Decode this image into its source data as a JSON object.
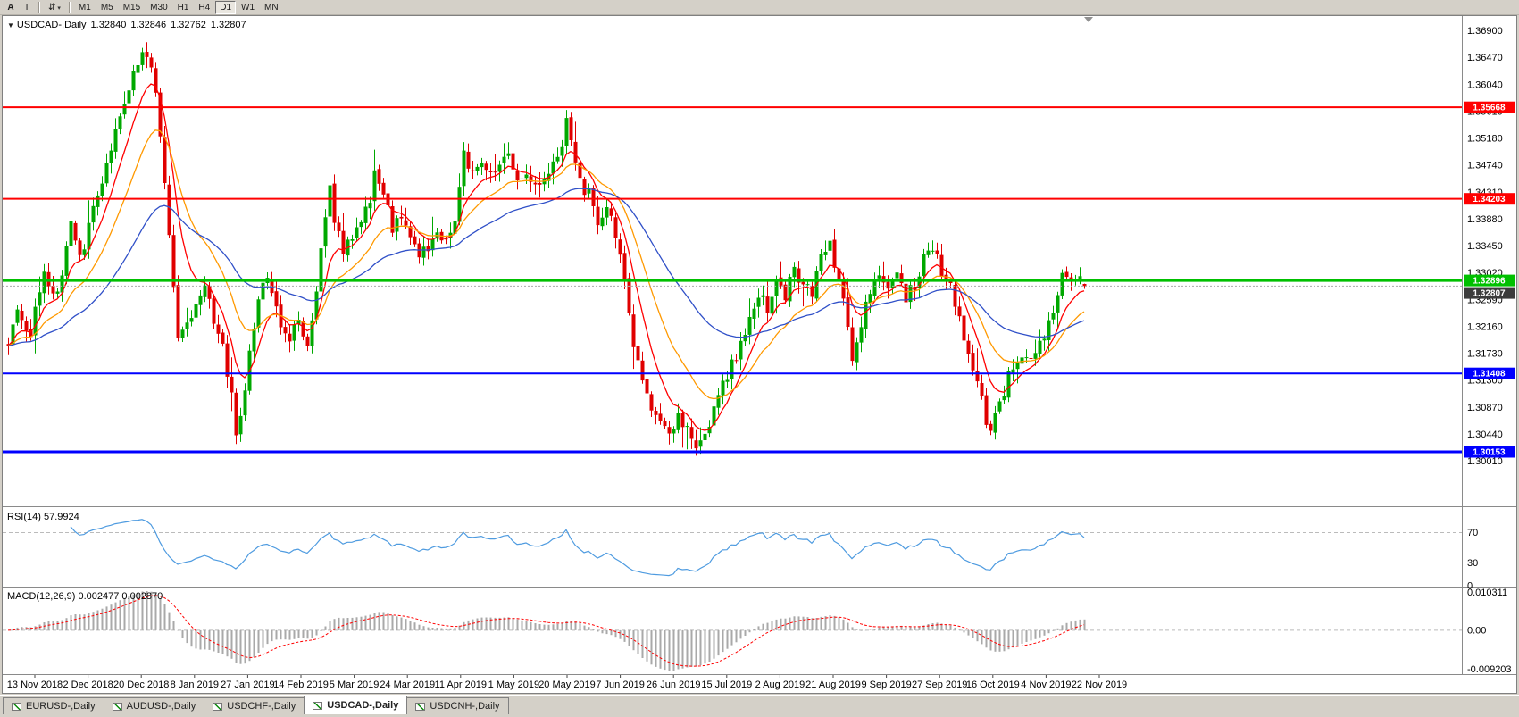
{
  "icons": {
    "arrows": "⇵",
    "caret": "▾",
    "dropdown": "▼"
  },
  "toolbar": {
    "font_buttons": [
      {
        "label": "A"
      },
      {
        "label": "T"
      }
    ],
    "timeframes": [
      {
        "label": "M1"
      },
      {
        "label": "M5"
      },
      {
        "label": "M15"
      },
      {
        "label": "M30"
      },
      {
        "label": "H1"
      },
      {
        "label": "H4"
      },
      {
        "label": "D1",
        "active": true
      },
      {
        "label": "W1"
      },
      {
        "label": "MN"
      }
    ]
  },
  "chart": {
    "symbol_label": "USDCAD-,Daily",
    "ohlc": {
      "open": "1.32840",
      "high": "1.32846",
      "low": "1.32762",
      "close": "1.32807"
    },
    "price_ticks": [
      "1.36900",
      "1.36470",
      "1.36040",
      "1.35610",
      "1.35180",
      "1.34740",
      "1.34310",
      "1.33880",
      "1.33450",
      "1.33020",
      "1.32590",
      "1.32160",
      "1.31730",
      "1.31300",
      "1.30870",
      "1.30440",
      "1.30010"
    ],
    "hlines": [
      {
        "price": 1.35668,
        "label": "1.35668",
        "color": "#FF0000",
        "width": 2
      },
      {
        "price": 1.34203,
        "label": "1.34203",
        "color": "#FF0000",
        "width": 2
      },
      {
        "price": 1.32896,
        "label": "1.32896",
        "color": "#00C000",
        "width": 3
      },
      {
        "price": 1.31408,
        "label": "1.31408",
        "color": "#0000FF",
        "width": 2
      },
      {
        "price": 1.30153,
        "label": "1.30153",
        "color": "#0000FF",
        "width": 3
      }
    ],
    "bid": {
      "price": 1.32807,
      "label": "1.32807",
      "box_color": "#3C3C3C"
    },
    "dates": [
      "13 Nov 2018",
      "2 Dec 2018",
      "20 Dec 2018",
      "8 Jan 2019",
      "27 Jan 2019",
      "14 Feb 2019",
      "5 Mar 2019",
      "24 Mar 2019",
      "11 Apr 2019",
      "1 May 2019",
      "20 May 2019",
      "7 Jun 2019",
      "26 Jun 2019",
      "15 Jul 2019",
      "2 Aug 2019",
      "21 Aug 2019",
      "9 Sep 2019",
      "27 Sep 2019",
      "16 Oct 2019",
      "4 Nov 2019",
      "22 Nov 2019"
    ]
  },
  "rsi": {
    "title": "RSI(14) 57.9924",
    "period": 14,
    "value": 57.9924,
    "levels": [
      {
        "label": "70",
        "value": 70,
        "line": true
      },
      {
        "label": "30",
        "value": 30,
        "line": true
      },
      {
        "label": "0",
        "value": 0,
        "line": false
      }
    ]
  },
  "macd": {
    "title": "MACD(12,26,9) 0.002477 0.002870",
    "fast": 12,
    "slow": 26,
    "signal_period": 9,
    "values": [
      0.002477,
      0.00287
    ],
    "levels": [
      {
        "label": "0.010311",
        "pos": "top"
      },
      {
        "label": "0.00",
        "pos": "zero"
      },
      {
        "label": "-0.009203",
        "pos": "bottom"
      }
    ]
  },
  "tabs": [
    {
      "label": "EURUSD-,Daily"
    },
    {
      "label": "AUDUSD-,Daily"
    },
    {
      "label": "USDCHF-,Daily"
    },
    {
      "label": "USDCAD-,Daily",
      "active": true
    },
    {
      "label": "USDCNH-,Daily"
    }
  ],
  "colors": {
    "up": "#00A800",
    "down": "#E00000",
    "rsi_line": "#4E9BE0",
    "macd_hist": "#A9A9A9",
    "macd_signal": "#FF0000",
    "chrome": "#D4D0C8",
    "panel_bg": "#FFFFFF"
  },
  "chart_data": {
    "type": "candlestick",
    "symbol": "USDCAD",
    "timeframe": "Daily",
    "candles_visible": 242,
    "axis_top_price": 1.369,
    "axis_bottom_price": 1.3001,
    "visible_price_range": [
      1.293,
      1.37
    ],
    "last_candle": {
      "open": 1.3284,
      "high": 1.32846,
      "low": 1.32762,
      "close": 1.32807
    },
    "moving_averages": [
      {
        "color": "#FF0000",
        "period": 8
      },
      {
        "color": "#FF9900",
        "period": 18
      },
      {
        "color": "#3050C8",
        "period": 45
      }
    ],
    "trend_anchors": [
      [
        0,
        1.3185
      ],
      [
        2,
        1.324
      ],
      [
        5,
        1.3205
      ],
      [
        8,
        1.33
      ],
      [
        11,
        1.3265
      ],
      [
        14,
        1.338
      ],
      [
        16,
        1.332
      ],
      [
        19,
        1.34
      ],
      [
        22,
        1.348
      ],
      [
        25,
        1.356
      ],
      [
        28,
        1.362
      ],
      [
        30,
        1.3655
      ],
      [
        32,
        1.364
      ],
      [
        34,
        1.352
      ],
      [
        36,
        1.336
      ],
      [
        38,
        1.32
      ],
      [
        40,
        1.3215
      ],
      [
        42,
        1.326
      ],
      [
        44,
        1.3285
      ],
      [
        46,
        1.3225
      ],
      [
        48,
        1.318
      ],
      [
        50,
        1.31
      ],
      [
        51,
        1.3045
      ],
      [
        53,
        1.312
      ],
      [
        55,
        1.322
      ],
      [
        57,
        1.3295
      ],
      [
        59,
        1.328
      ],
      [
        61,
        1.3225
      ],
      [
        63,
        1.3195
      ],
      [
        65,
        1.3235
      ],
      [
        67,
        1.3185
      ],
      [
        69,
        1.3265
      ],
      [
        70,
        1.3345
      ],
      [
        72,
        1.344
      ],
      [
        73,
        1.3385
      ],
      [
        75,
        1.3335
      ],
      [
        77,
        1.3365
      ],
      [
        79,
        1.3385
      ],
      [
        81,
        1.3415
      ],
      [
        82,
        1.3465
      ],
      [
        84,
        1.3425
      ],
      [
        86,
        1.3375
      ],
      [
        88,
        1.3385
      ],
      [
        90,
        1.3365
      ],
      [
        92,
        1.3335
      ],
      [
        94,
        1.3345
      ],
      [
        96,
        1.3365
      ],
      [
        98,
        1.3355
      ],
      [
        100,
        1.3375
      ],
      [
        102,
        1.3495
      ],
      [
        104,
        1.3455
      ],
      [
        106,
        1.3475
      ],
      [
        108,
        1.3465
      ],
      [
        110,
        1.3475
      ],
      [
        112,
        1.3485
      ],
      [
        114,
        1.3445
      ],
      [
        116,
        1.3465
      ],
      [
        118,
        1.3435
      ],
      [
        120,
        1.3445
      ],
      [
        122,
        1.3475
      ],
      [
        124,
        1.3495
      ],
      [
        125,
        1.3545
      ],
      [
        127,
        1.3475
      ],
      [
        129,
        1.3435
      ],
      [
        131,
        1.3415
      ],
      [
        132,
        1.3375
      ],
      [
        134,
        1.3415
      ],
      [
        136,
        1.3365
      ],
      [
        138,
        1.3285
      ],
      [
        140,
        1.3185
      ],
      [
        142,
        1.3125
      ],
      [
        144,
        1.3085
      ],
      [
        146,
        1.3065
      ],
      [
        148,
        1.3045
      ],
      [
        150,
        1.3075
      ],
      [
        152,
        1.3055
      ],
      [
        154,
        1.3025
      ],
      [
        156,
        1.3035
      ],
      [
        158,
        1.3085
      ],
      [
        160,
        1.3125
      ],
      [
        162,
        1.3155
      ],
      [
        164,
        1.3185
      ],
      [
        166,
        1.3225
      ],
      [
        168,
        1.3265
      ],
      [
        170,
        1.3245
      ],
      [
        172,
        1.3285
      ],
      [
        174,
        1.3265
      ],
      [
        176,
        1.3305
      ],
      [
        178,
        1.3285
      ],
      [
        180,
        1.3265
      ],
      [
        182,
        1.3325
      ],
      [
        184,
        1.3345
      ],
      [
        186,
        1.3285
      ],
      [
        188,
        1.3225
      ],
      [
        189,
        1.3165
      ],
      [
        191,
        1.3225
      ],
      [
        193,
        1.3265
      ],
      [
        195,
        1.3305
      ],
      [
        197,
        1.3285
      ],
      [
        199,
        1.3305
      ],
      [
        201,
        1.3265
      ],
      [
        203,
        1.3285
      ],
      [
        205,
        1.3325
      ],
      [
        207,
        1.3345
      ],
      [
        209,
        1.3305
      ],
      [
        211,
        1.3285
      ],
      [
        213,
        1.3225
      ],
      [
        215,
        1.3165
      ],
      [
        217,
        1.3125
      ],
      [
        219,
        1.3065
      ],
      [
        220,
        1.3045
      ],
      [
        222,
        1.3095
      ],
      [
        224,
        1.3135
      ],
      [
        226,
        1.3155
      ],
      [
        228,
        1.3175
      ],
      [
        230,
        1.3165
      ],
      [
        232,
        1.3205
      ],
      [
        234,
        1.3245
      ],
      [
        236,
        1.3295
      ],
      [
        238,
        1.3285
      ],
      [
        240,
        1.3305
      ],
      [
        241,
        1.32807
      ]
    ]
  }
}
